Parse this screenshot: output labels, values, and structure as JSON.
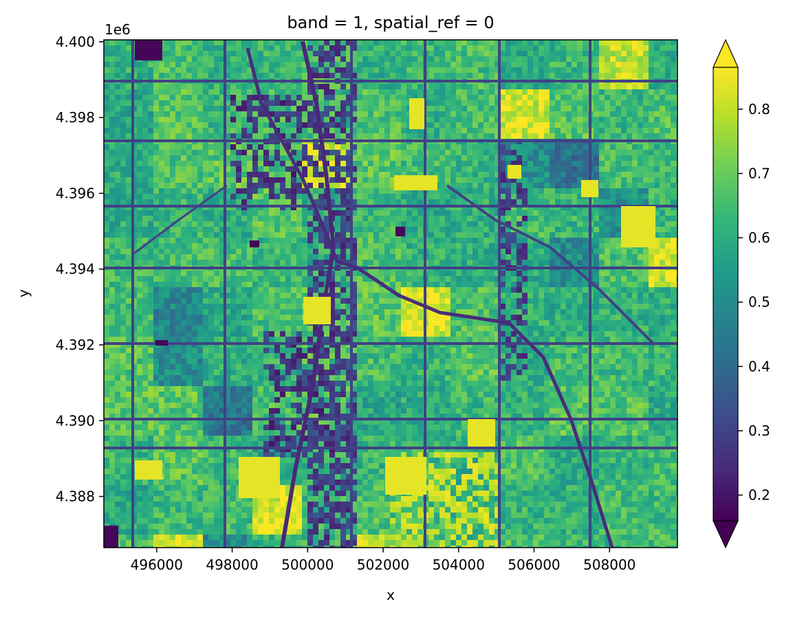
{
  "chart_data": {
    "type": "heatmap",
    "title": "band = 1, spatial_ref = 0",
    "xlabel": "x",
    "ylabel": "y",
    "xlim": [
      494600,
      509800
    ],
    "ylim": [
      4386650,
      4400050
    ],
    "x_ticks": [
      496000,
      498000,
      500000,
      502000,
      504000,
      506000,
      508000
    ],
    "x_tick_labels": [
      "496000",
      "498000",
      "500000",
      "502000",
      "504000",
      "506000",
      "508000"
    ],
    "y_ticks": [
      4.388,
      4.39,
      4.392,
      4.394,
      4.396,
      4.398,
      4.4
    ],
    "y_tick_labels": [
      "4.388",
      "4.390",
      "4.392",
      "4.394",
      "4.396",
      "4.398",
      "4.400"
    ],
    "y_offset_label": "1e6",
    "colorbar": {
      "colormap": "viridis",
      "range": [
        0.16,
        0.865
      ],
      "extend": "both",
      "ticks": [
        0.2,
        0.3,
        0.4,
        0.5,
        0.6,
        0.7,
        0.8
      ],
      "tick_labels": [
        "0.2",
        "0.3",
        "0.4",
        "0.5",
        "0.6",
        "0.7",
        "0.8"
      ]
    },
    "grid": false,
    "description": "Raster image of band values over a city area: mostly 0.55-0.7 green blocks, dark purple (~0.2-0.3) along roads, rivers and a central north-south corridor, yellow (~0.8) patches scattered (parks/fields)."
  },
  "colors": {
    "viridis_stops": [
      "#440154",
      "#482878",
      "#3e4989",
      "#31688e",
      "#26828e",
      "#1f9e89",
      "#35b779",
      "#6ece58",
      "#b5de2b",
      "#fde725"
    ]
  }
}
